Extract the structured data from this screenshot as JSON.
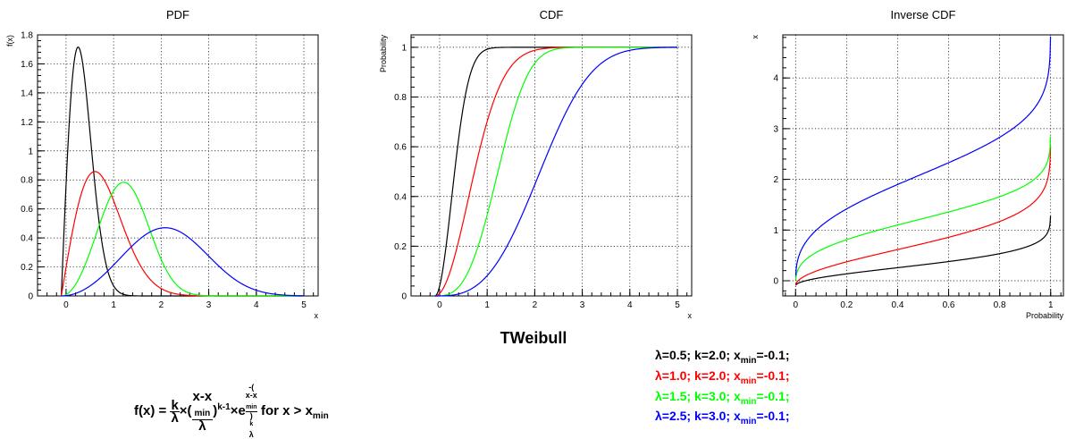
{
  "main_title": "TWeibull",
  "formula": {
    "lhs": "f(x) = ",
    "k": "k",
    "lambda": "λ",
    "times": "×",
    "open": "(",
    "x_minus": "x-x",
    "min": "min",
    "close": ")",
    "exp_power": "k-1",
    "e": "e",
    "exp_prefix": "-(",
    "exp_num": "x-x",
    "exp_num_sub": "min",
    "exp_close": ")",
    "exp_k": "k",
    "condition": " for x > x",
    "condition_sub": "min"
  },
  "legend": [
    {
      "text": "λ=0.5;  k=2.0;  x",
      "sub": "min",
      "tail": "=-0.1;",
      "color": "#000000"
    },
    {
      "text": "λ=1.0;  k=2.0;  x",
      "sub": "min",
      "tail": "=-0.1;",
      "color": "#ff0000"
    },
    {
      "text": "λ=1.5;  k=3.0;  x",
      "sub": "min",
      "tail": "=-0.1;",
      "color": "#00ff00"
    },
    {
      "text": "λ=2.5;  k=3.0;  x",
      "sub": "min",
      "tail": "=-0.1;",
      "color": "#0000ff"
    }
  ],
  "chart_data": [
    {
      "type": "line",
      "title": "PDF",
      "xlabel": "x",
      "ylabel": "f(x)",
      "xlim": [
        -0.6,
        5.3
      ],
      "ylim": [
        0,
        1.8
      ],
      "xticks": [
        "0",
        "1",
        "2",
        "3",
        "4",
        "5"
      ],
      "yticks": [
        "0",
        "0.2",
        "0.4",
        "0.6",
        "0.8",
        "1",
        "1.2",
        "1.4",
        "1.6",
        "1.8"
      ],
      "grid": true,
      "series": [
        {
          "color": "#000000",
          "lambda": 0.5,
          "k": 2.0,
          "xmin": -0.1
        },
        {
          "color": "#ff0000",
          "lambda": 1.0,
          "k": 2.0,
          "xmin": -0.1
        },
        {
          "color": "#00ff00",
          "lambda": 1.5,
          "k": 3.0,
          "xmin": -0.1
        },
        {
          "color": "#0000ff",
          "lambda": 2.5,
          "k": 3.0,
          "xmin": -0.1
        }
      ]
    },
    {
      "type": "line",
      "title": "CDF",
      "xlabel": "x",
      "ylabel": "Probability",
      "xlim": [
        -0.6,
        5.3
      ],
      "ylim": [
        0,
        1.05
      ],
      "xticks": [
        "0",
        "1",
        "2",
        "3",
        "4",
        "5"
      ],
      "yticks": [
        "0",
        "0.2",
        "0.4",
        "0.6",
        "0.8",
        "1"
      ],
      "grid": true,
      "series": [
        {
          "color": "#000000",
          "lambda": 0.5,
          "k": 2.0,
          "xmin": -0.1
        },
        {
          "color": "#ff0000",
          "lambda": 1.0,
          "k": 2.0,
          "xmin": -0.1
        },
        {
          "color": "#00ff00",
          "lambda": 1.5,
          "k": 3.0,
          "xmin": -0.1
        },
        {
          "color": "#0000ff",
          "lambda": 2.5,
          "k": 3.0,
          "xmin": -0.1
        }
      ]
    },
    {
      "type": "line",
      "title": "Inverse CDF",
      "xlabel": "Probability",
      "ylabel": "x",
      "xlim": [
        -0.05,
        1.05
      ],
      "ylim": [
        -0.3,
        4.85
      ],
      "xticks": [
        "0",
        "0.2",
        "0.4",
        "0.6",
        "0.8",
        "1"
      ],
      "yticks": [
        "0",
        "1",
        "2",
        "3",
        "4"
      ],
      "grid": true,
      "series": [
        {
          "color": "#000000",
          "lambda": 0.5,
          "k": 2.0,
          "xmin": -0.1
        },
        {
          "color": "#ff0000",
          "lambda": 1.0,
          "k": 2.0,
          "xmin": -0.1
        },
        {
          "color": "#00ff00",
          "lambda": 1.5,
          "k": 3.0,
          "xmin": -0.1
        },
        {
          "color": "#0000ff",
          "lambda": 2.5,
          "k": 3.0,
          "xmin": -0.1
        }
      ]
    }
  ]
}
